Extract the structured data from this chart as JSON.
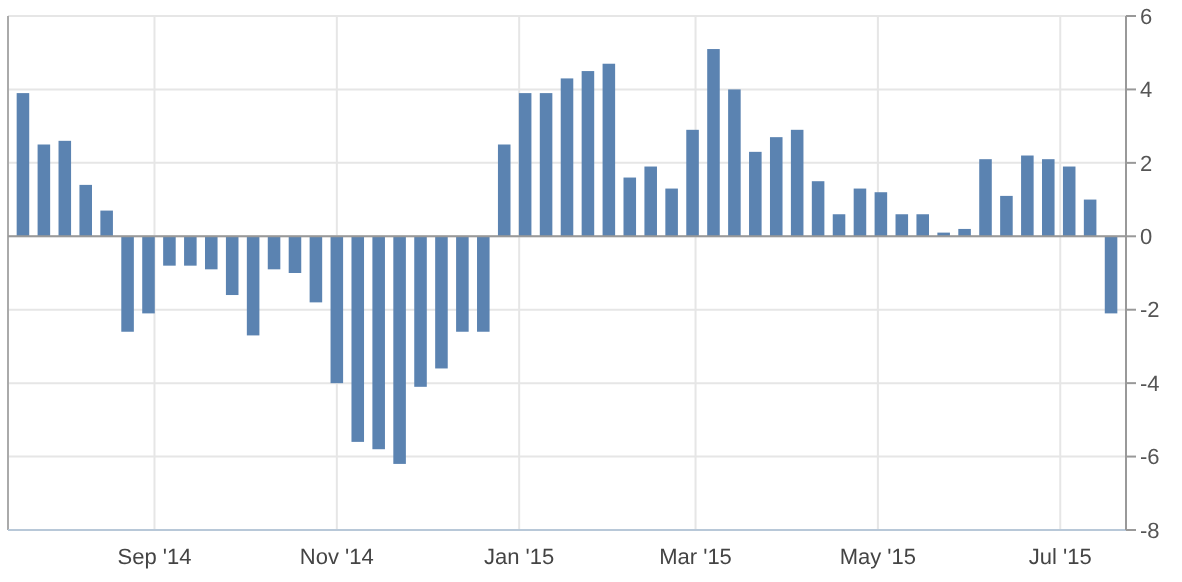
{
  "chart_data": {
    "type": "bar",
    "x": [
      "2014-07-19",
      "2014-07-26",
      "2014-08-02",
      "2014-08-09",
      "2014-08-16",
      "2014-08-23",
      "2014-08-30",
      "2014-09-06",
      "2014-09-13",
      "2014-09-20",
      "2014-09-27",
      "2014-10-04",
      "2014-10-11",
      "2014-10-18",
      "2014-10-25",
      "2014-11-01",
      "2014-11-08",
      "2014-11-15",
      "2014-11-22",
      "2014-11-29",
      "2014-12-06",
      "2014-12-13",
      "2014-12-20",
      "2014-12-27",
      "2015-01-03",
      "2015-01-10",
      "2015-01-17",
      "2015-01-24",
      "2015-01-31",
      "2015-02-07",
      "2015-02-14",
      "2015-02-21",
      "2015-02-28",
      "2015-03-07",
      "2015-03-14",
      "2015-03-21",
      "2015-03-28",
      "2015-04-04",
      "2015-04-11",
      "2015-04-18",
      "2015-04-25",
      "2015-05-02",
      "2015-05-09",
      "2015-05-16",
      "2015-05-23",
      "2015-05-30",
      "2015-06-06",
      "2015-06-13",
      "2015-06-20",
      "2015-06-27",
      "2015-07-04",
      "2015-07-11",
      "2015-07-18"
    ],
    "values": [
      3.9,
      2.5,
      2.6,
      1.4,
      0.7,
      -2.6,
      -2.1,
      -0.8,
      -0.8,
      -0.9,
      -1.6,
      -2.7,
      -0.9,
      -1.0,
      -1.8,
      -4.0,
      -5.6,
      -5.8,
      -6.2,
      -4.1,
      -3.6,
      -2.6,
      -2.6,
      2.5,
      3.9,
      3.9,
      4.3,
      4.5,
      4.7,
      1.6,
      1.9,
      1.3,
      2.9,
      5.1,
      4.0,
      2.3,
      2.7,
      2.9,
      1.5,
      0.6,
      1.3,
      1.2,
      0.6,
      0.6,
      0.1,
      0.2,
      2.1,
      1.1,
      2.2,
      2.1,
      1.9,
      1.0,
      -2.1
    ],
    "color": "#5b83b1",
    "xlim": [
      "2014-07-14",
      "2015-07-23"
    ],
    "xticks": [
      {
        "value": "2014-09-01",
        "label": "Sep '14"
      },
      {
        "value": "2014-11-01",
        "label": "Nov '14"
      },
      {
        "value": "2015-01-01",
        "label": "Jan '15"
      },
      {
        "value": "2015-03-01",
        "label": "Mar '15"
      },
      {
        "value": "2015-05-01",
        "label": "May '15"
      },
      {
        "value": "2015-07-01",
        "label": "Jul '15"
      }
    ],
    "ylim": [
      -8,
      6
    ],
    "yticks": [
      -8,
      -6,
      -4,
      -2,
      0,
      2,
      4,
      6
    ],
    "grid": true
  }
}
